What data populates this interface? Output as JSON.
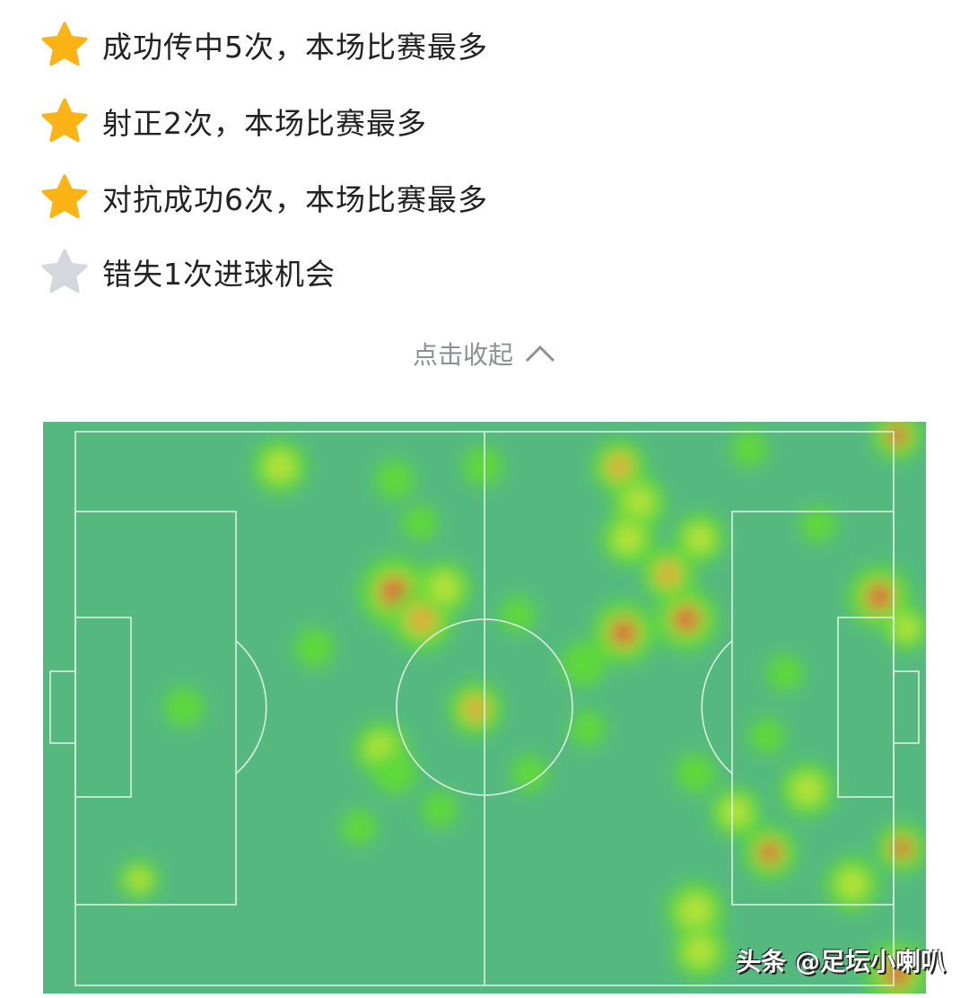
{
  "highlights": [
    {
      "icon": "star-gold-icon",
      "text": "成功传中5次，本场比赛最多",
      "active": true
    },
    {
      "icon": "star-gold-icon",
      "text": "射正2次，本场比赛最多",
      "active": true
    },
    {
      "icon": "star-gold-icon",
      "text": "对抗成功6次，本场比赛最多",
      "active": true
    },
    {
      "icon": "star-gray-icon",
      "text": "错失1次进球机会",
      "active": false
    }
  ],
  "collapse": {
    "label": "点击收起",
    "icon": "chevron-up-icon"
  },
  "heatmap": {
    "pitch_color": "#55b97f",
    "line_color": "#d9f0e2"
  },
  "watermark": "头条 @足坛小喇叭",
  "colors": {
    "star_active": "#fbb315",
    "star_inactive": "#d4d7de"
  }
}
